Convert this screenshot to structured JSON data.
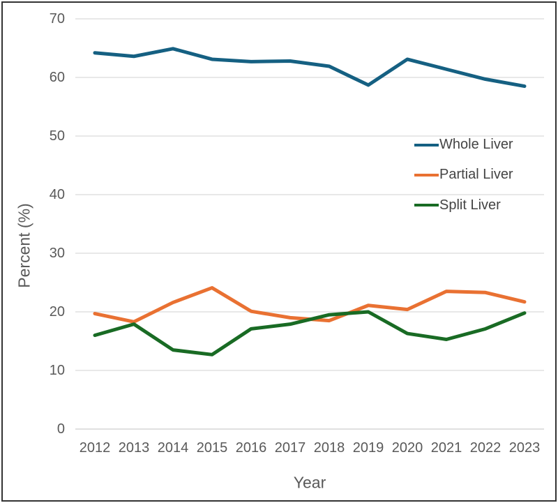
{
  "chart_data": {
    "type": "line",
    "title": "",
    "xlabel": "Year",
    "ylabel": "Percent (%)",
    "categories": [
      "2012",
      "2013",
      "2014",
      "2015",
      "2016",
      "2017",
      "2018",
      "2019",
      "2020",
      "2021",
      "2022",
      "2023"
    ],
    "yticks": [
      "0",
      "10",
      "20",
      "30",
      "40",
      "50",
      "60",
      "70"
    ],
    "ylim": [
      0,
      70
    ],
    "ytick_step": 10,
    "grid": "horizontal",
    "legend_position": "inside-right",
    "series": [
      {
        "name": "Whole Liver",
        "color": "#156082",
        "values": [
          64.2,
          63.6,
          64.9,
          63.1,
          62.7,
          62.8,
          61.9,
          58.7,
          63.1,
          61.4,
          59.7,
          58.5
        ]
      },
      {
        "name": "Partial Liver",
        "color": "#E97132",
        "values": [
          19.7,
          18.3,
          21.6,
          24.1,
          20.1,
          19.0,
          18.5,
          21.1,
          20.4,
          23.5,
          23.3,
          21.7
        ]
      },
      {
        "name": "Split Liver",
        "color": "#196B24",
        "values": [
          16.0,
          17.9,
          13.5,
          12.7,
          17.1,
          17.9,
          19.5,
          20.0,
          16.3,
          15.3,
          17.1,
          19.8
        ]
      }
    ]
  },
  "colors": {
    "gridline": "#D9D9D9",
    "axis_line": "#D6D6D6",
    "tick_text": "#595959",
    "legend_text": "#444444",
    "frame_border": "#333333",
    "background": "#FFFFFF"
  }
}
